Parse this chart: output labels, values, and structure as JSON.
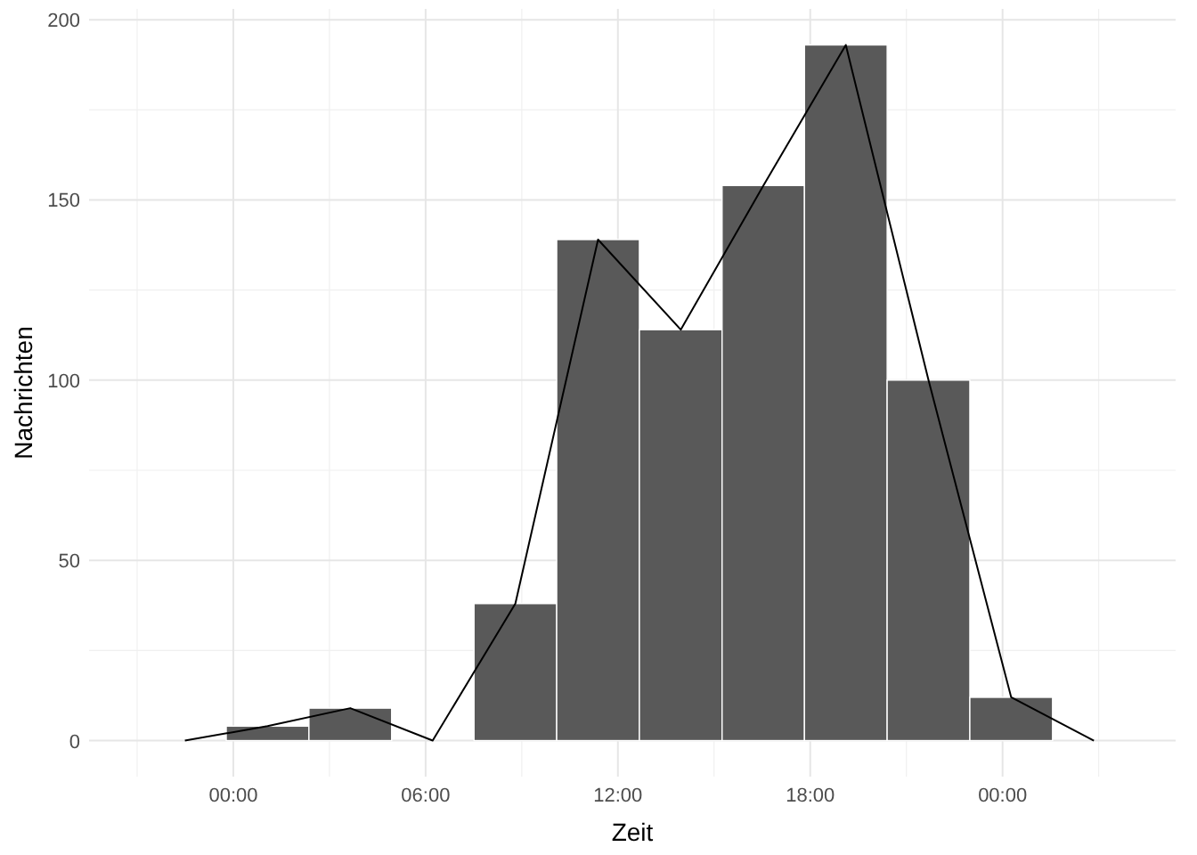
{
  "chart_data": {
    "type": "histogram",
    "xlabel": "Zeit",
    "ylabel": "Nachrichten",
    "color": "#595959",
    "bins": [
      -0.22,
      2.36,
      4.94,
      7.51,
      10.09,
      12.67,
      15.25,
      17.82,
      20.4,
      22.98,
      25.56
    ],
    "values": [
      4,
      9,
      0,
      38,
      139,
      114,
      154,
      193,
      100,
      12
    ],
    "series": [
      {
        "type": "line",
        "color": "#000000",
        "x": [
          -1.51,
          1.07,
          3.65,
          6.22,
          8.8,
          11.38,
          13.96,
          16.54,
          19.11,
          21.69,
          24.27,
          26.85
        ],
        "values": [
          0,
          4,
          9,
          0,
          38,
          139,
          114,
          154,
          193,
          100,
          12,
          0
        ]
      }
    ],
    "xlim": [
      -4.5,
      29.4
    ],
    "ylim": [
      -10,
      203
    ],
    "xticks": [
      {
        "value": 0,
        "label": "00:00"
      },
      {
        "value": 6,
        "label": "06:00"
      },
      {
        "value": 12,
        "label": "12:00"
      },
      {
        "value": 18,
        "label": "18:00"
      },
      {
        "value": 24,
        "label": "00:00"
      }
    ],
    "yticks": [
      0,
      50,
      100,
      150,
      200
    ],
    "grid": true
  }
}
